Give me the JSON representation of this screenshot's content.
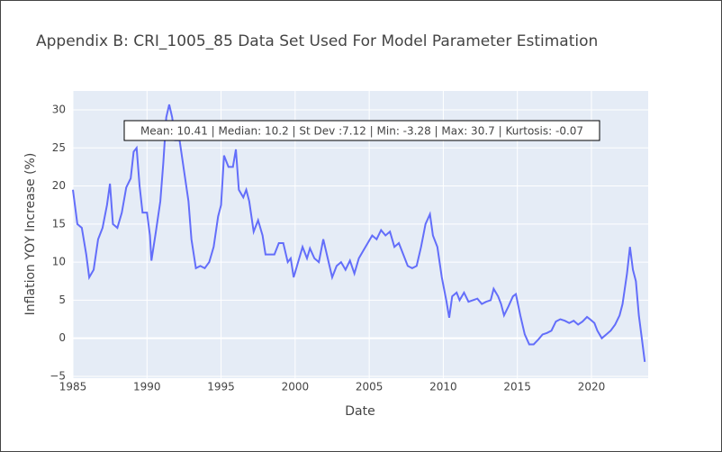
{
  "chart_data": {
    "type": "line",
    "title": "Appendix B: CRI_1005_85 Data Set Used For Model Parameter Estimation",
    "x_label": "Date",
    "y_label": "Inflation YOY Increase (%)",
    "annotation": "Mean: 10.41 | Median: 10.2 | St Dev :7.12 | Min: -3.28 | Max: 30.7 | Kurtosis: -0.07",
    "xlim": [
      1985,
      2023.83
    ],
    "ylim": [
      -5.24,
      32.48
    ],
    "xticks": [
      1985,
      1990,
      1995,
      2000,
      2005,
      2010,
      2015,
      2020
    ],
    "yticks": [
      {
        "value": -5,
        "label": "−5"
      },
      0,
      5,
      10,
      15,
      20,
      25,
      30
    ],
    "grid": true,
    "series": [
      {
        "color": "#636efa",
        "x": [
          1985.0,
          1985.3,
          1985.6,
          1985.9,
          1986.1,
          1986.4,
          1986.7,
          1987.0,
          1987.3,
          1987.5,
          1987.7,
          1988.0,
          1988.3,
          1988.6,
          1988.9,
          1989.1,
          1989.3,
          1989.5,
          1989.7,
          1990.0,
          1990.2,
          1990.3,
          1990.6,
          1990.9,
          1991.1,
          1991.3,
          1991.5,
          1991.7,
          1991.9,
          1992.2,
          1992.5,
          1992.8,
          1993.0,
          1993.3,
          1993.6,
          1993.9,
          1994.2,
          1994.5,
          1994.8,
          1995.0,
          1995.2,
          1995.5,
          1995.8,
          1996.0,
          1996.2,
          1996.5,
          1996.7,
          1996.9,
          1997.2,
          1997.5,
          1997.8,
          1998.0,
          1998.3,
          1998.6,
          1998.9,
          1999.2,
          1999.5,
          1999.7,
          1999.9,
          2000.2,
          2000.5,
          2000.8,
          2001.0,
          2001.3,
          2001.6,
          2001.9,
          2002.2,
          2002.5,
          2002.8,
          2003.1,
          2003.4,
          2003.7,
          2004.0,
          2004.3,
          2004.6,
          2004.9,
          2005.2,
          2005.5,
          2005.8,
          2006.1,
          2006.4,
          2006.7,
          2007.0,
          2007.3,
          2007.6,
          2007.9,
          2008.2,
          2008.5,
          2008.8,
          2009.1,
          2009.3,
          2009.6,
          2009.9,
          2010.2,
          2010.4,
          2010.6,
          2010.9,
          2011.1,
          2011.4,
          2011.7,
          2012.0,
          2012.3,
          2012.6,
          2012.9,
          2013.2,
          2013.4,
          2013.7,
          2013.9,
          2014.1,
          2014.4,
          2014.7,
          2014.9,
          2015.2,
          2015.5,
          2015.8,
          2016.1,
          2016.4,
          2016.7,
          2017.0,
          2017.3,
          2017.6,
          2017.9,
          2018.2,
          2018.5,
          2018.8,
          2019.1,
          2019.4,
          2019.7,
          2019.9,
          2020.2,
          2020.4,
          2020.7,
          2021.0,
          2021.3,
          2021.6,
          2021.9,
          2022.1,
          2022.4,
          2022.6,
          2022.8,
          2023.0,
          2023.2,
          2023.4,
          2023.6
        ],
        "values": [
          19.5,
          15,
          14.5,
          11,
          8,
          9,
          13,
          14.5,
          17.5,
          20.3,
          15,
          14.5,
          16.5,
          19.8,
          21,
          24.5,
          25,
          20,
          16.5,
          16.5,
          13.5,
          10.2,
          14,
          18,
          23,
          29,
          30.7,
          29,
          26,
          26,
          22,
          18,
          13,
          9.2,
          9.5,
          9.2,
          10,
          12,
          16,
          17.5,
          24,
          22.5,
          22.5,
          24.8,
          19.5,
          18.5,
          19.5,
          18,
          14,
          15.5,
          13.5,
          11,
          11,
          11,
          12.5,
          12.5,
          10,
          10.5,
          8,
          10,
          12,
          10.5,
          11.8,
          10.5,
          10,
          13,
          10.5,
          8,
          9.5,
          10,
          9,
          10.2,
          8.5,
          10.5,
          11.5,
          12.5,
          13.5,
          13,
          14.2,
          13.5,
          14,
          12,
          12.5,
          11,
          9.5,
          9.2,
          9.5,
          12,
          15,
          16.3,
          13.5,
          12,
          8,
          5,
          2.7,
          5.5,
          6,
          5,
          6,
          4.8,
          5,
          5.2,
          4.5,
          4.8,
          5,
          6.5,
          5.5,
          4.5,
          3,
          4.2,
          5.5,
          5.8,
          3,
          0.5,
          -0.8,
          -0.8,
          -0.2,
          0.5,
          0.7,
          1,
          2.2,
          2.5,
          2.3,
          2,
          2.3,
          1.8,
          2.2,
          2.8,
          2.5,
          2,
          1,
          0,
          0.5,
          1,
          1.8,
          3,
          4.5,
          8.5,
          12,
          9,
          7.5,
          3,
          0,
          -3.1
        ]
      }
    ]
  }
}
